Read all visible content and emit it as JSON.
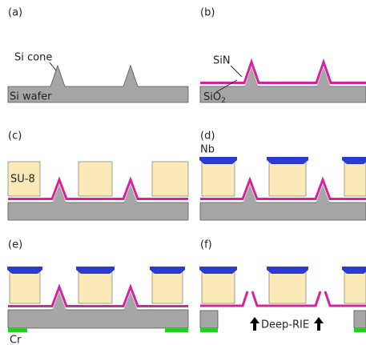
{
  "panels": [
    {
      "label": "(a)"
    },
    {
      "label": "(b)"
    },
    {
      "label": "(c)"
    },
    {
      "label": "(d)"
    },
    {
      "label": "(e)"
    },
    {
      "label": "(f)"
    }
  ],
  "labels": {
    "si_cone": "Si cone",
    "si_wafer": "Si wafer",
    "sin": "SiN",
    "sio2": {
      "text": "SiO",
      "subscript": "2"
    },
    "su8": "SU-8",
    "nb": "Nb",
    "cr": "Cr",
    "deep_rie": "Deep-RIE"
  }
}
